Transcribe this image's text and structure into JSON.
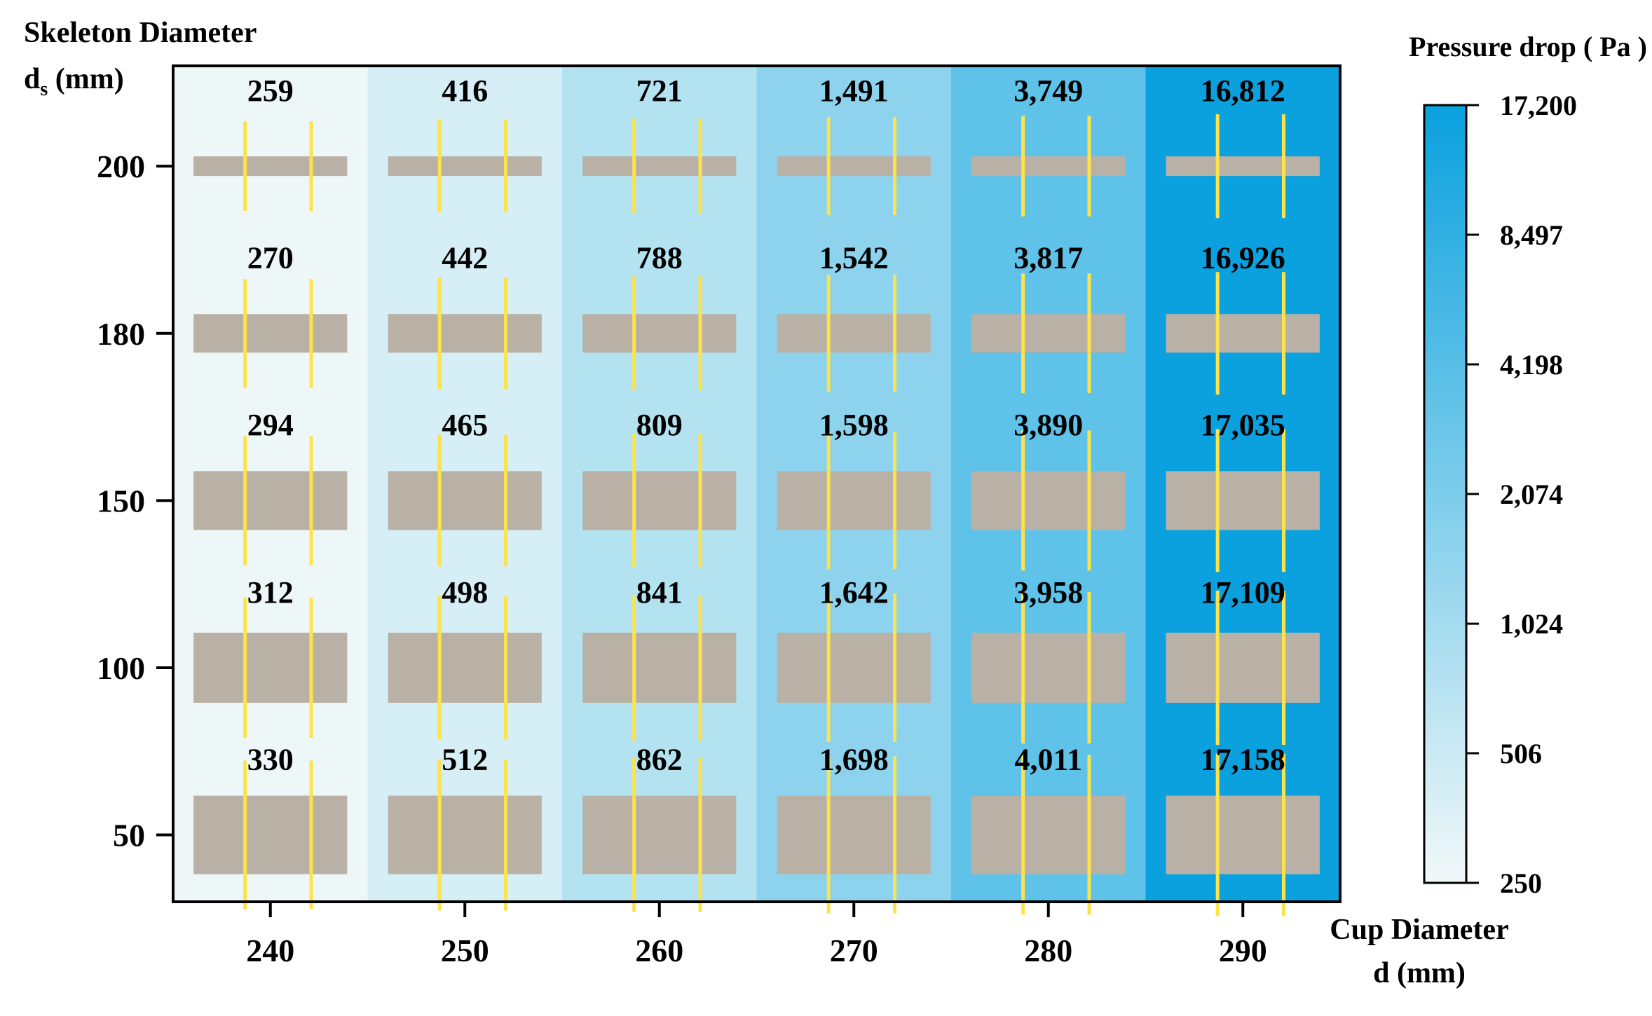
{
  "chart_data": {
    "type": "heatmap",
    "xlabel": [
      "Cup Diameter",
      "d (mm)"
    ],
    "ylabel": {
      "line1": "Skeleton Diameter",
      "line2_base": "d",
      "line2_sub": "s",
      "line2_rest": " (mm)"
    },
    "x": [
      240,
      250,
      260,
      270,
      280,
      290
    ],
    "y": [
      200,
      180,
      150,
      100,
      50
    ],
    "x_tick_labels": [
      "240",
      "250",
      "260",
      "270",
      "280",
      "290"
    ],
    "y_tick_labels": [
      "200",
      "180",
      "150",
      "100",
      "50"
    ],
    "values": [
      [
        259,
        416,
        721,
        1491,
        3749,
        16812
      ],
      [
        270,
        442,
        788,
        1542,
        3817,
        16926
      ],
      [
        294,
        465,
        809,
        1598,
        3890,
        17035
      ],
      [
        312,
        498,
        841,
        1642,
        3958,
        17109
      ],
      [
        330,
        512,
        862,
        1698,
        4011,
        17158
      ]
    ],
    "value_labels": [
      [
        "259",
        "416",
        "721",
        "1,491",
        "3,749",
        "16,812"
      ],
      [
        "270",
        "442",
        "788",
        "1,542",
        "3,817",
        "16,926"
      ],
      [
        "294",
        "465",
        "809",
        "1,598",
        "3,890",
        "17,035"
      ],
      [
        "312",
        "498",
        "841",
        "1,642",
        "3,958",
        "17,109"
      ],
      [
        "330",
        "512",
        "862",
        "1,698",
        "4,011",
        "17,158"
      ]
    ],
    "column_colors": [
      "#eef7f7",
      "#d6eef5",
      "#b3e2f1",
      "#8dd3ee",
      "#5ec2e9",
      "#0aa1de"
    ],
    "colorbar": {
      "title": "Pressure drop ( Pa )",
      "scale": "log",
      "range": [
        250,
        17200
      ],
      "ticks": [
        17200,
        8497,
        4198,
        2074,
        1024,
        506,
        250
      ],
      "tick_labels": [
        "17,200",
        "8,497",
        "4,198",
        "2,074",
        "1,024",
        "506",
        "250"
      ],
      "color_low": "#f1f8f8",
      "color_high": "#0aa1de"
    },
    "skeleton_color": "#bab1a6",
    "wire_color": "#fde34a"
  }
}
